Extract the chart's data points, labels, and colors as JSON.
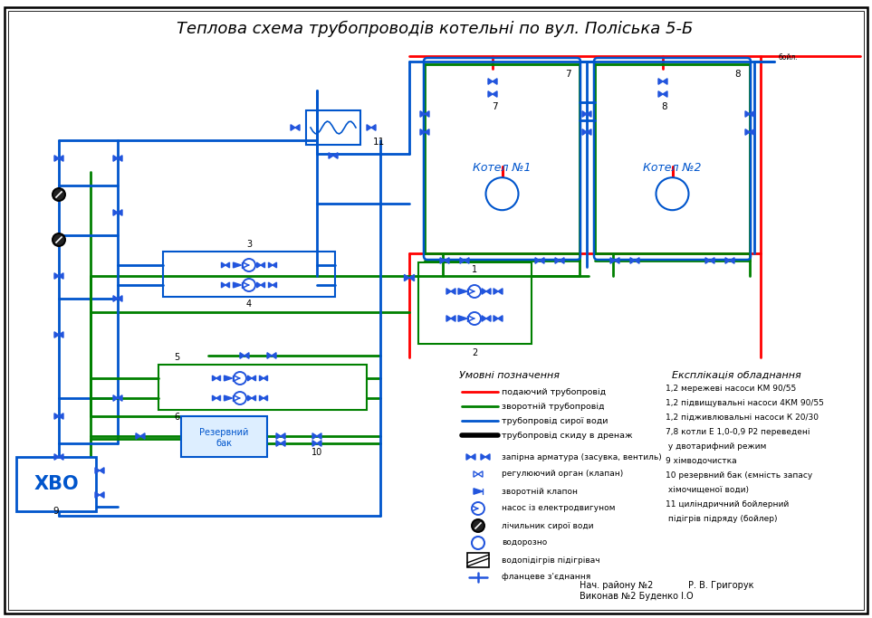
{
  "title": "Теплова схема трубопроводів котельні по вул. Поліська 5-Б",
  "title_fontsize": 13,
  "background_color": "#ffffff",
  "colors": {
    "red": "#ff0000",
    "green": "#008000",
    "blue": "#0055cc",
    "black": "#000000",
    "lb": "#2255dd"
  },
  "legend_items": [
    {
      "color": "#ff0000",
      "label": "подаючий трубопровід"
    },
    {
      "color": "#008000",
      "label": "зворотній трубопровід"
    },
    {
      "color": "#0055cc",
      "label": "трубопровід сирої води"
    },
    {
      "color": "#000000",
      "label": "трубопровід скиду в дренаж"
    }
  ],
  "legend_symbols": [
    "запірна арматура (засувка, вентиль)",
    "регулюючий орган (клапан)",
    "зворотній клапон",
    "насос із електродвигуном",
    "лічильник сирої води",
    "водорозно",
    "водопідігрів підігрівач",
    "фланцеве з'єднання"
  ],
  "expliq_items": [
    [
      "1,2",
      "мережеві насоси КМ 90/55"
    ],
    [
      "1,2",
      "підвищувальні насоси 4КМ 90/55"
    ],
    [
      "1,2",
      "підживлювальні насоси К 20/30"
    ],
    [
      "7,8",
      "котли Е 1,0-0,9 Р2 переведені"
    ],
    [
      "",
      "у двотарифний режим"
    ],
    [
      "9",
      "хімводочистка"
    ],
    [
      "10",
      "резервний бак (ємність запасу"
    ],
    [
      "",
      "хімочищеної води)"
    ],
    [
      "11",
      "циліндричний бойлерний"
    ],
    [
      "",
      "підігрів підряду (бойлер)"
    ]
  ],
  "sign1": "Нач. району №2",
  "sign2": "Р. В. Григорук",
  "sign3": "Виконав №2 Буденко І.О"
}
